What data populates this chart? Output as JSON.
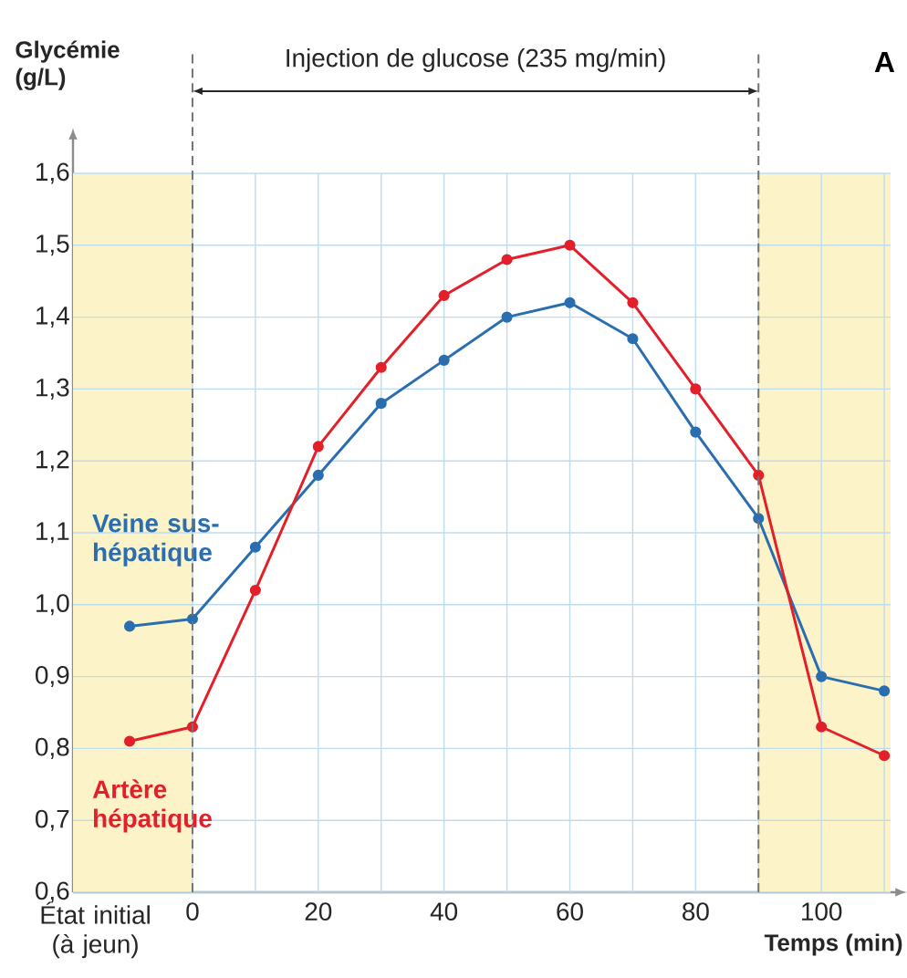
{
  "chart_data": {
    "type": "line",
    "ylabel": "Glycémie (g/L)",
    "xlabel": "Temps (min)",
    "annotations": [
      "Injection de glucose (235 mg/min)",
      "A"
    ],
    "xlim": [
      -19,
      111
    ],
    "ylim": [
      0.6,
      1.6
    ],
    "xticks": [
      0,
      {
        "value": 10,
        "label": null
      },
      20,
      {
        "value": 30,
        "label": null
      },
      40,
      {
        "value": 50,
        "label": null
      },
      60,
      {
        "value": 70,
        "label": null
      },
      80,
      {
        "value": 90,
        "label": null
      },
      100,
      {
        "value": 110,
        "label": null
      }
    ],
    "yticks": [
      {
        "value": 0.6,
        "label": "0,6"
      },
      {
        "value": 0.7,
        "label": "0,7"
      },
      {
        "value": 0.8,
        "label": "0,8"
      },
      {
        "value": 0.9,
        "label": "0,9"
      },
      {
        "value": 1.0,
        "label": "1,0"
      },
      {
        "value": 1.1,
        "label": "1,1"
      },
      {
        "value": 1.2,
        "label": "1,2"
      },
      {
        "value": 1.3,
        "label": "1,3"
      },
      {
        "value": 1.4,
        "label": "1,4"
      },
      {
        "value": 1.5,
        "label": "1,5"
      },
      {
        "value": 1.6,
        "label": "1,6"
      }
    ],
    "grid": true,
    "marker": "circle",
    "line_style": "solid",
    "x": [
      -10,
      0,
      10,
      20,
      30,
      40,
      50,
      60,
      70,
      80,
      90,
      100,
      110
    ],
    "series": [
      {
        "name": "Veine sus-hépatique",
        "color": "#2a6eb0",
        "values": [
          0.97,
          0.98,
          1.08,
          1.18,
          1.28,
          1.34,
          1.4,
          1.42,
          1.37,
          1.24,
          1.12,
          0.9,
          0.88
        ]
      },
      {
        "name": "Artère hépatique",
        "color": "#e3202a",
        "values": [
          0.81,
          0.83,
          1.02,
          1.22,
          1.33,
          1.43,
          1.48,
          1.5,
          1.42,
          1.3,
          1.18,
          0.83,
          0.79
        ]
      }
    ],
    "bands": [
      {
        "axis": "x",
        "from": -19,
        "to": 0,
        "label": "État initial (à jeun)",
        "color": "#fcf4c8"
      },
      {
        "axis": "x",
        "from": 90,
        "to": 111,
        "color": "#fcf4c8"
      }
    ]
  }
}
